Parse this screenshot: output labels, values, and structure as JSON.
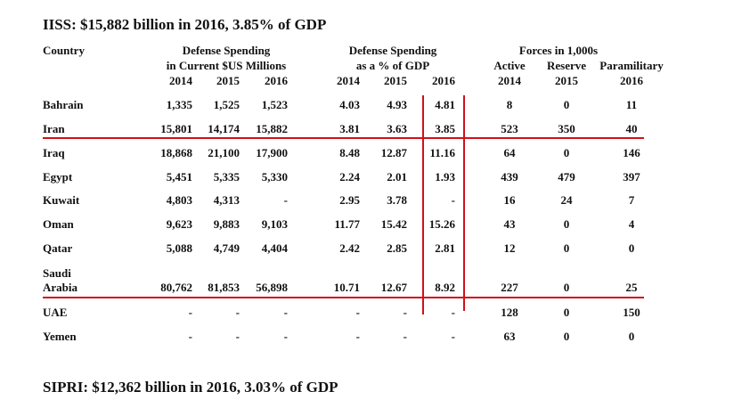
{
  "iiss_title": "IISS: $15,882 billion in 2016, 3.85% of GDP",
  "sipri_title": "SIPRI: $12,362 billion in 2016, 3.03% of GDP",
  "headers": {
    "country": "Country",
    "spend_line1": "Defense Spending",
    "spend_line2": "in Current $US Millions",
    "gdp_line1": "Defense Spending",
    "gdp_line2": "as a % of GDP",
    "forces_line1": "Forces in 1,000s",
    "active": "Active",
    "reserve": "Reserve",
    "paramilitary": "Paramilitary",
    "spend_years": [
      "2014",
      "2015",
      "2016"
    ],
    "gdp_years": [
      "2014",
      "2015",
      "2016"
    ],
    "forces_years": [
      "2014",
      "2015",
      "2016"
    ]
  },
  "rows": [
    {
      "country": "Bahrain",
      "spend": [
        "1,335",
        "1,525",
        "1,523"
      ],
      "gdp": [
        "4.03",
        "4.93",
        "4.81"
      ],
      "forces": [
        "8",
        "0",
        "11"
      ]
    },
    {
      "country": "Iran",
      "spend": [
        "15,801",
        "14,174",
        "15,882"
      ],
      "gdp": [
        "3.81",
        "3.63",
        "3.85"
      ],
      "forces": [
        "523",
        "350",
        "40"
      ]
    },
    {
      "country": "Iraq",
      "spend": [
        "18,868",
        "21,100",
        "17,900"
      ],
      "gdp": [
        "8.48",
        "12.87",
        "11.16"
      ],
      "forces": [
        "64",
        "0",
        "146"
      ]
    },
    {
      "country": "Egypt",
      "spend": [
        "5,451",
        "5,335",
        "5,330"
      ],
      "gdp": [
        "2.24",
        "2.01",
        "1.93"
      ],
      "forces": [
        "439",
        "479",
        "397"
      ]
    },
    {
      "country": "Kuwait",
      "spend": [
        "4,803",
        "4,313",
        "-"
      ],
      "gdp": [
        "2.95",
        "3.78",
        "-"
      ],
      "forces": [
        "16",
        "24",
        "7"
      ]
    },
    {
      "country": "Oman",
      "spend": [
        "9,623",
        "9,883",
        "9,103"
      ],
      "gdp": [
        "11.77",
        "15.42",
        "15.26"
      ],
      "forces": [
        "43",
        "0",
        "4"
      ]
    },
    {
      "country": "Qatar",
      "spend": [
        "5,088",
        "4,749",
        "4,404"
      ],
      "gdp": [
        "2.42",
        "2.85",
        "2.81"
      ],
      "forces": [
        "12",
        "0",
        "0"
      ]
    },
    {
      "country_line1": "Saudi",
      "country": "Arabia",
      "spend": [
        "80,762",
        "81,853",
        "56,898"
      ],
      "gdp": [
        "10.71",
        "12.67",
        "8.92"
      ],
      "forces": [
        "227",
        "0",
        "25"
      ]
    },
    {
      "country": "UAE",
      "spend": [
        "-",
        "-",
        "-"
      ],
      "gdp": [
        "-",
        "-",
        "-"
      ],
      "forces": [
        "128",
        "0",
        "150"
      ]
    },
    {
      "country": "Yemen",
      "spend": [
        "-",
        "-",
        "-"
      ],
      "gdp": [
        "-",
        "-",
        "-"
      ],
      "forces": [
        "63",
        "0",
        "0"
      ]
    }
  ],
  "accent_color": "#d0101a"
}
